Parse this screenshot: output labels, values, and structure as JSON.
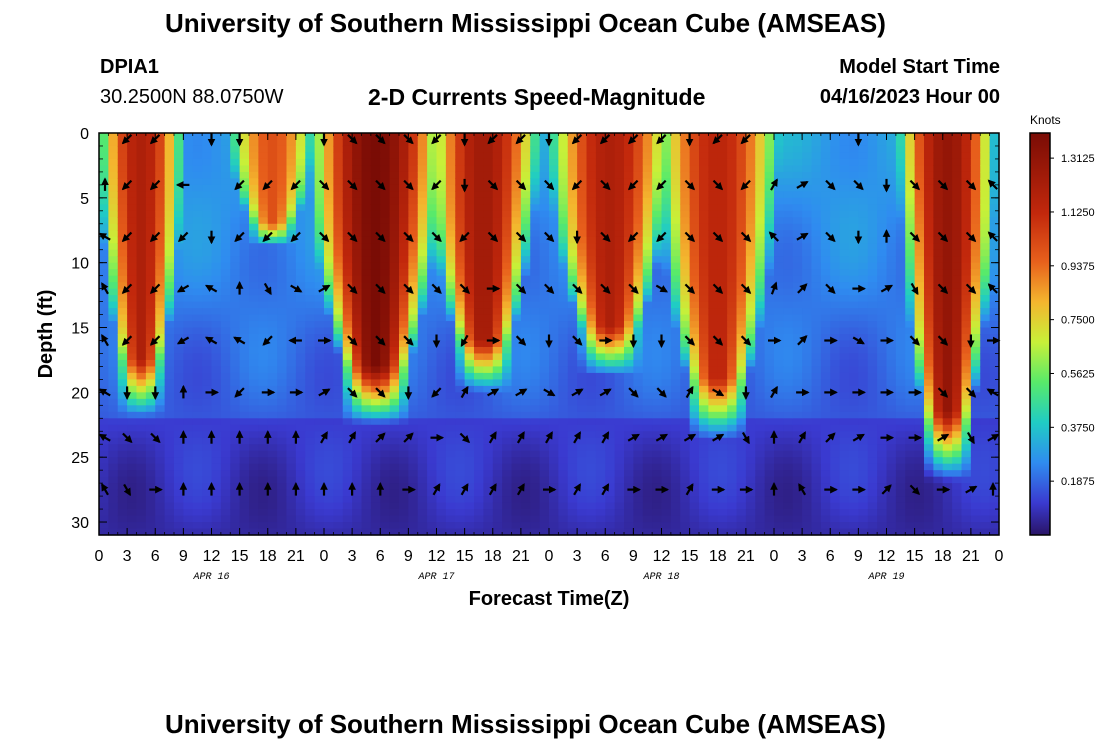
{
  "header": {
    "title": "University of Southern Mississippi Ocean Cube (AMSEAS)",
    "station_id": "DPIA1",
    "coordinates": "30.2500N  88.0750W",
    "plot_title": "2-D Currents Speed-Magnitude",
    "model_start_label": "Model Start Time",
    "model_start_value": "04/16/2023 Hour 00"
  },
  "footer": {
    "title": "University of Southern Mississippi Ocean Cube (AMSEAS)"
  },
  "colors": {
    "background": "#ffffff",
    "axis": "#000000",
    "arrow": "#000000"
  },
  "chart_data": {
    "type": "heatmap",
    "title": "2-D Currents Speed-Magnitude",
    "xlabel": "Forecast Time(Z)",
    "ylabel": "Depth (ft)",
    "x_range_hours": [
      0,
      96
    ],
    "xlim": [
      0,
      96
    ],
    "ylim": [
      0,
      31
    ],
    "y_inverted": true,
    "x_tick_values": [
      0,
      3,
      6,
      9,
      12,
      15,
      18,
      21,
      24,
      27,
      30,
      33,
      36,
      39,
      42,
      45,
      48,
      51,
      54,
      57,
      60,
      63,
      66,
      69,
      72,
      75,
      78,
      81,
      84,
      87,
      90,
      93,
      96
    ],
    "x_tick_labels": [
      "0",
      "3",
      "6",
      "9",
      "12",
      "15",
      "18",
      "21",
      "0",
      "3",
      "6",
      "9",
      "12",
      "15",
      "18",
      "21",
      "0",
      "3",
      "6",
      "9",
      "12",
      "15",
      "18",
      "21",
      "0",
      "3",
      "6",
      "9",
      "12",
      "15",
      "18",
      "21",
      "0"
    ],
    "day_labels": [
      {
        "label": "APR 16",
        "hour": 12
      },
      {
        "label": "APR 17",
        "hour": 36
      },
      {
        "label": "APR 18",
        "hour": 60
      },
      {
        "label": "APR 19",
        "hour": 84
      }
    ],
    "y_ticks": [
      0,
      5,
      10,
      15,
      20,
      25,
      30
    ],
    "y_tick_labels": [
      "0",
      "5",
      "10",
      "15",
      "20",
      "25",
      "30"
    ],
    "colorbar": {
      "label": "Knots",
      "min": 0,
      "max": 1.4,
      "ticks": [
        1.3125,
        1.125,
        0.9375,
        0.75,
        0.5625,
        0.375,
        0.1875
      ],
      "tick_labels": [
        "1.3125",
        "1.1250",
        "0.9375",
        "0.7500",
        "0.5625",
        "0.3750",
        "0.1875"
      ]
    },
    "speed_cores": [
      {
        "start_hour": 1.5,
        "end_hour": 7.5,
        "depth_top": 0,
        "depth_bottom": 17.5,
        "speed": 1.2
      },
      {
        "start_hour": 15.5,
        "end_hour": 21.5,
        "depth_top": 0,
        "depth_bottom": 7,
        "speed": 1.0
      },
      {
        "start_hour": 24.5,
        "end_hour": 34.5,
        "depth_top": 0,
        "depth_bottom": 18,
        "speed": 1.4
      },
      {
        "start_hour": 37,
        "end_hour": 45,
        "depth_top": 0,
        "depth_bottom": 16,
        "speed": 1.25
      },
      {
        "start_hour": 50,
        "end_hour": 59,
        "depth_top": 0,
        "depth_bottom": 15,
        "speed": 1.2
      },
      {
        "start_hour": 61.5,
        "end_hour": 70.5,
        "depth_top": 0,
        "depth_bottom": 19,
        "speed": 1.15
      },
      {
        "start_hour": 87,
        "end_hour": 94,
        "depth_top": 0,
        "depth_bottom": 21.5,
        "speed": 1.3
      }
    ],
    "arrow_hours": [
      0,
      3,
      6,
      9,
      12,
      15,
      18,
      21,
      24,
      27,
      30,
      33,
      36,
      39,
      42,
      45,
      48,
      51,
      54,
      57,
      60,
      63,
      66,
      69,
      72,
      75,
      78,
      81,
      84,
      87,
      90,
      93,
      96
    ],
    "arrow_depths": [
      0,
      4,
      8,
      12,
      16,
      20,
      23.5,
      27.5
    ],
    "arrow_rows": [
      [
        null,
        225,
        225,
        null,
        180,
        180,
        null,
        null,
        180,
        135,
        135,
        135,
        225,
        180,
        225,
        225,
        180,
        225,
        225,
        225,
        225,
        180,
        225,
        225,
        null,
        null,
        null,
        180,
        null,
        null,
        null,
        null,
        null
      ],
      [
        0,
        225,
        225,
        270,
        null,
        225,
        225,
        225,
        135,
        135,
        135,
        135,
        225,
        180,
        135,
        135,
        135,
        225,
        135,
        225,
        225,
        135,
        135,
        225,
        30,
        60,
        135,
        135,
        180,
        135,
        135,
        135,
        315
      ],
      [
        300,
        225,
        225,
        225,
        180,
        225,
        225,
        225,
        135,
        135,
        135,
        135,
        135,
        225,
        135,
        135,
        135,
        180,
        135,
        225,
        225,
        135,
        135,
        135,
        315,
        60,
        135,
        180,
        0,
        135,
        135,
        135,
        315
      ],
      [
        330,
        225,
        225,
        240,
        300,
        0,
        150,
        120,
        60,
        135,
        135,
        135,
        135,
        135,
        90,
        135,
        135,
        135,
        135,
        135,
        120,
        135,
        135,
        135,
        20,
        45,
        135,
        90,
        60,
        150,
        135,
        135,
        315
      ],
      [
        330,
        225,
        225,
        240,
        300,
        300,
        225,
        270,
        90,
        135,
        135,
        135,
        180,
        210,
        90,
        135,
        180,
        135,
        90,
        180,
        180,
        135,
        135,
        135,
        90,
        45,
        90,
        120,
        90,
        135,
        135,
        180,
        90
      ],
      [
        300,
        180,
        180,
        0,
        90,
        225,
        90,
        90,
        60,
        135,
        135,
        180,
        225,
        30,
        60,
        60,
        120,
        60,
        60,
        135,
        135,
        30,
        120,
        180,
        30,
        90,
        90,
        90,
        90,
        90,
        135,
        135,
        300
      ],
      [
        300,
        135,
        135,
        0,
        0,
        0,
        0,
        0,
        30,
        30,
        45,
        45,
        90,
        135,
        30,
        30,
        30,
        30,
        30,
        60,
        60,
        60,
        60,
        150,
        0,
        30,
        45,
        60,
        90,
        90,
        60,
        150,
        60
      ],
      [
        330,
        150,
        90,
        0,
        0,
        0,
        0,
        0,
        0,
        0,
        0,
        90,
        30,
        30,
        30,
        30,
        90,
        30,
        30,
        90,
        90,
        30,
        90,
        90,
        0,
        330,
        90,
        90,
        45,
        135,
        90,
        60,
        0
      ]
    ]
  }
}
